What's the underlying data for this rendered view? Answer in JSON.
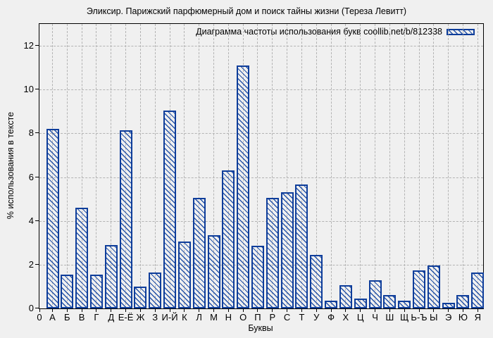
{
  "chart_data": {
    "type": "bar",
    "title": "Эликсир. Парижский парфюмерный дом и поиск тайны жизни (Тереза Левитт)",
    "legend_label": "Диаграмма частоты использования букв coollib.net/b/812338",
    "xlabel": "Буквы",
    "ylabel": "% использования в тексте",
    "origin_tick_label": "0",
    "categories": [
      "А",
      "Б",
      "В",
      "Г",
      "Д",
      "Е-Ё",
      "Ж",
      "З",
      "И-Й",
      "К",
      "Л",
      "М",
      "Н",
      "О",
      "П",
      "Р",
      "С",
      "Т",
      "У",
      "Ф",
      "Х",
      "Ц",
      "Ч",
      "Ш",
      "Щ",
      "Ь-Ъ",
      "Ы",
      "Э",
      "Ю",
      "Я"
    ],
    "values": [
      8.2,
      1.55,
      4.6,
      1.55,
      2.9,
      8.15,
      1.0,
      1.65,
      9.05,
      3.05,
      5.05,
      3.35,
      6.3,
      11.1,
      2.85,
      5.05,
      5.3,
      5.65,
      2.45,
      0.35,
      1.05,
      0.45,
      1.3,
      0.6,
      0.35,
      1.75,
      1.95,
      0.25,
      0.6,
      1.65
    ],
    "ylim": [
      0,
      13
    ],
    "yticks": [
      0,
      2,
      4,
      6,
      8,
      10,
      12
    ],
    "grid": true,
    "legend_position": "top-right",
    "bar_style": "hatched-diagonal"
  },
  "colors": {
    "background": "#f0f0f0",
    "bar_border": "#0e3d9a",
    "bar_hatch": "#2553a8",
    "gridline": "#b3b3b3",
    "axis": "#000000",
    "text": "#000000"
  }
}
